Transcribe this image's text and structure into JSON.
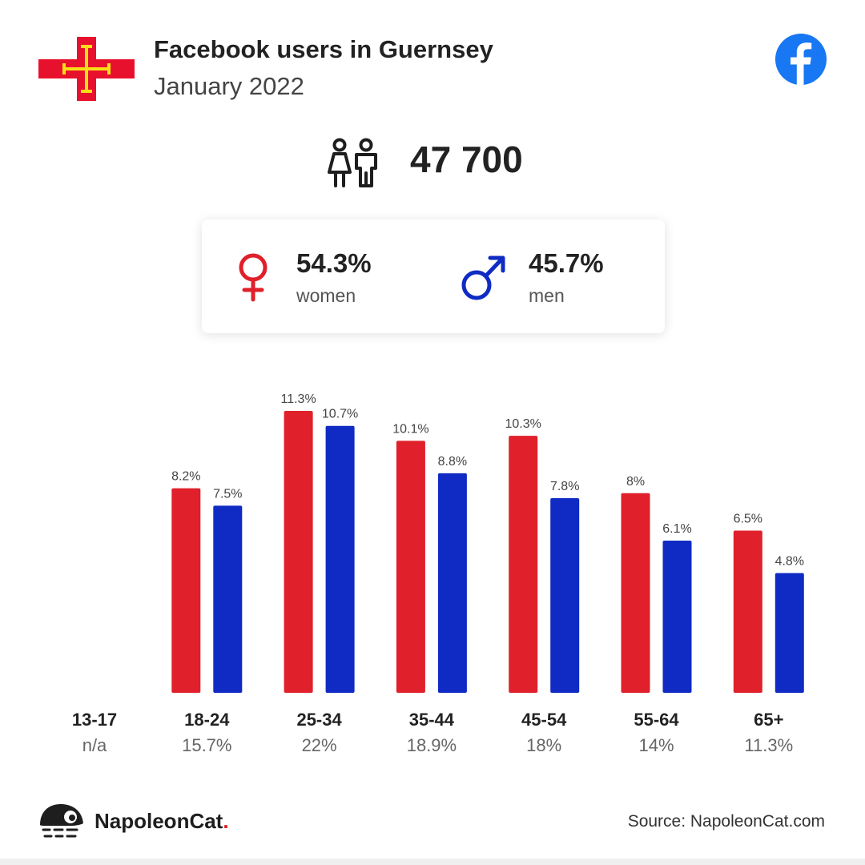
{
  "header": {
    "title": "Facebook users in Guernsey",
    "subtitle": "January 2022"
  },
  "icons": {
    "flag": "guernsey-flag-icon",
    "facebook": "facebook-logo-icon",
    "users": "users-icon",
    "female": "female-symbol-icon",
    "male": "male-symbol-icon",
    "brand": "napoleoncat-mascot-icon"
  },
  "totals": {
    "users": "47 700"
  },
  "gender": {
    "women_pct": "54.3%",
    "women_label": "women",
    "men_pct": "45.7%",
    "men_label": "men"
  },
  "colors": {
    "women": "#e0202a",
    "men": "#0f2bc4",
    "facebook": "#1877f2"
  },
  "chart_data": {
    "type": "bar",
    "categories": [
      "13-17",
      "18-24",
      "25-34",
      "35-44",
      "45-54",
      "55-64",
      "65+"
    ],
    "category_totals": [
      "n/a",
      "15.7%",
      "22%",
      "18.9%",
      "18%",
      "14%",
      "11.3%"
    ],
    "series": [
      {
        "key": "women",
        "values": [
          null,
          8.2,
          11.3,
          10.1,
          10.3,
          8,
          6.5
        ],
        "labels": [
          "",
          "8.2%",
          "11.3%",
          "10.1%",
          "10.3%",
          "8%",
          "6.5%"
        ]
      },
      {
        "key": "men",
        "values": [
          null,
          7.5,
          10.7,
          8.8,
          7.8,
          6.1,
          4.8
        ],
        "labels": [
          "",
          "7.5%",
          "10.7%",
          "8.8%",
          "7.8%",
          "6.1%",
          "4.8%"
        ]
      }
    ],
    "title": "",
    "xlabel": "",
    "ylabel": "",
    "grid": false
  },
  "footer": {
    "brand_name": "NapoleonCat",
    "brand_dot": ".",
    "source": "Source: NapoleonCat.com"
  }
}
